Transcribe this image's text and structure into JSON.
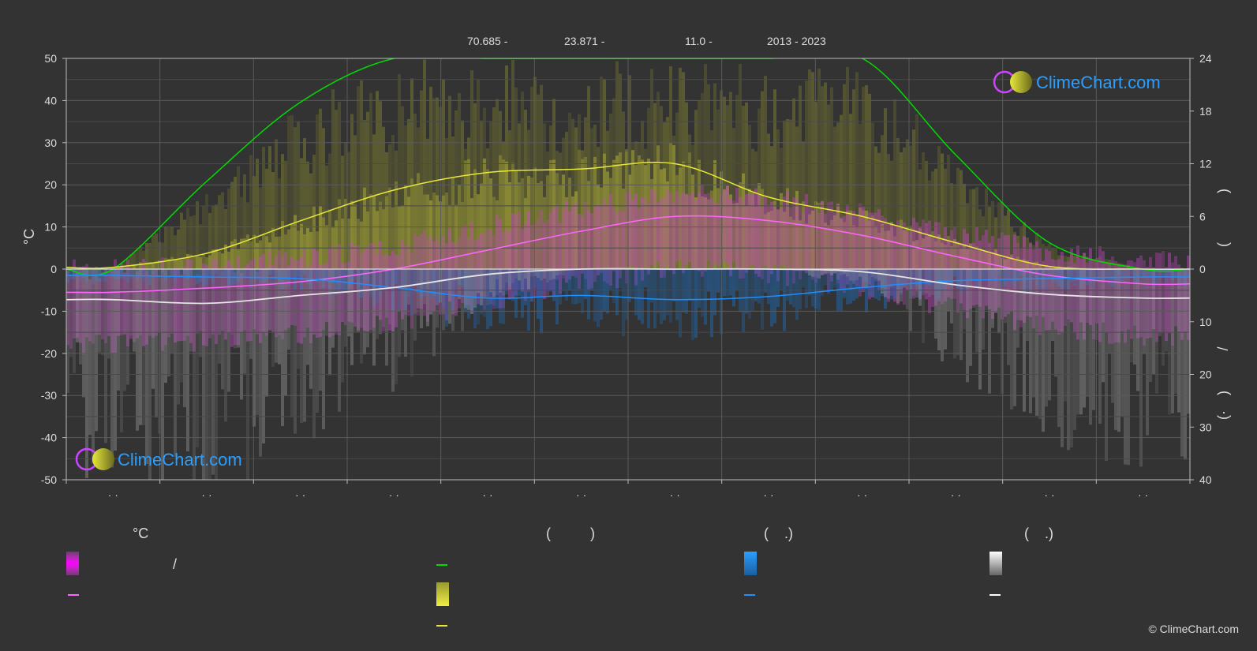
{
  "header": {
    "items": [
      "70.685 -",
      "23.871 -",
      "11.0 -",
      "2013 - 2023"
    ]
  },
  "logo": {
    "text": "ClimeChart.com"
  },
  "copyright": "© ClimeChart.com",
  "colors": {
    "background": "#333333",
    "grid": "#555555",
    "daylight": "#00dd00",
    "sunshine": "#e8e83a",
    "max_temp": "#ff66ff",
    "rain": "#1e90ff",
    "snow": "#e6e6e6",
    "logo_blue": "#2a9fff"
  },
  "legend": {
    "col1": {
      "heading": "°C",
      "row1_text": "/"
    },
    "col2": {
      "heading": "(          )"
    },
    "col3": {
      "heading": "(    .)"
    },
    "col4": {
      "heading": "(    .)"
    }
  },
  "chart_data": {
    "type": "line",
    "left_axis": {
      "label": "°C",
      "ticks": [
        50,
        40,
        30,
        20,
        10,
        0,
        -10,
        -20,
        -30,
        -40,
        -50
      ],
      "ylim": [
        -50,
        50
      ]
    },
    "right_axis": {
      "upper_ticks": [
        24,
        18,
        12,
        6,
        0
      ],
      "upper_range": [
        0,
        24
      ],
      "lower_ticks": [
        10,
        20,
        30,
        40
      ],
      "lower_range": [
        0,
        40
      ],
      "label_glyphs": [
        ")",
        "(",
        "/",
        ")",
        "(·"
      ]
    },
    "x_tick_labels": [
      "· ·",
      "· ·",
      "· ·",
      "· ·",
      "· ·",
      "· ·",
      "· ·",
      "· ·",
      "· ·",
      "· ·",
      "· ·",
      "· ·"
    ],
    "months": 12,
    "grid": true,
    "series": [
      {
        "key": "daylight",
        "values": [
          0,
          10,
          19,
          24,
          24,
          24,
          24,
          24,
          24,
          13,
          3,
          0
        ],
        "axis": "right_upper"
      },
      {
        "key": "sunshine",
        "values": [
          0.2,
          1.8,
          5.5,
          9,
          11,
          11.4,
          12,
          8.2,
          6,
          3,
          0.3,
          0
        ],
        "axis": "right_upper"
      },
      {
        "key": "max_temp",
        "values": [
          -5.5,
          -4.5,
          -3,
          0,
          4.5,
          9,
          12.5,
          11.5,
          8,
          3,
          -1.5,
          -3.5
        ],
        "axis": "left"
      },
      {
        "key": "rain",
        "values": [
          1.2,
          1.5,
          1.8,
          3.5,
          5.5,
          5,
          5.8,
          5.2,
          3.5,
          2.2,
          1.8,
          1.5
        ],
        "axis": "right_lower"
      },
      {
        "key": "snow",
        "values": [
          5.8,
          6.5,
          5,
          3.5,
          1,
          0,
          0,
          0,
          0.5,
          3,
          4.8,
          5.5
        ],
        "axis": "right_lower"
      }
    ]
  }
}
